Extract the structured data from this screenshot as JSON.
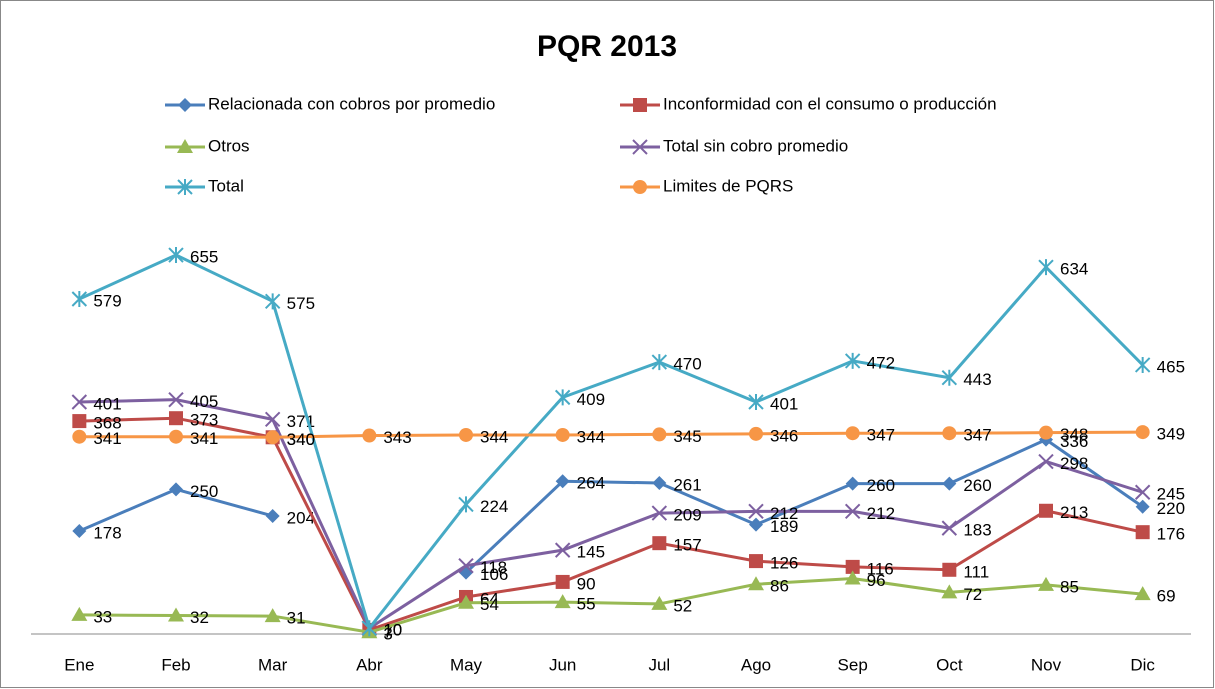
{
  "chart_data": {
    "type": "line",
    "title": "PQR 2013",
    "categories": [
      "Ene",
      "Feb",
      "Mar",
      "Abr",
      "May",
      "Jun",
      "Jul",
      "Ago",
      "Sep",
      "Oct",
      "Nov",
      "Dic"
    ],
    "ylim": [
      0,
      700
    ],
    "series": [
      {
        "name": "Relacionada con cobros por promedio",
        "color": "#4a7ebb",
        "marker": "diamond",
        "values": [
          178,
          250,
          204,
          null,
          106,
          264,
          261,
          189,
          260,
          260,
          336,
          220
        ]
      },
      {
        "name": "Inconformidad con el consumo o producción",
        "color": "#be4b48",
        "marker": "square",
        "values": [
          368,
          373,
          340,
          7,
          64,
          90,
          157,
          126,
          116,
          111,
          213,
          176
        ]
      },
      {
        "name": "Otros",
        "color": "#98b954",
        "marker": "triangle",
        "values": [
          33,
          32,
          31,
          3,
          54,
          55,
          52,
          86,
          96,
          72,
          85,
          69
        ]
      },
      {
        "name": "Total sin cobro promedio",
        "color": "#7d60a0",
        "marker": "x",
        "values": [
          401,
          405,
          371,
          10,
          118,
          145,
          209,
          212,
          212,
          183,
          298,
          245
        ]
      },
      {
        "name": "Total",
        "color": "#46aac5",
        "marker": "star",
        "values": [
          579,
          655,
          575,
          10,
          224,
          409,
          470,
          401,
          472,
          443,
          634,
          465
        ]
      },
      {
        "name": "Limites de PQRS",
        "color": "#f79646",
        "marker": "circle",
        "values": [
          341,
          341,
          340,
          343,
          344,
          344,
          345,
          346,
          347,
          347,
          348,
          349
        ]
      }
    ]
  }
}
